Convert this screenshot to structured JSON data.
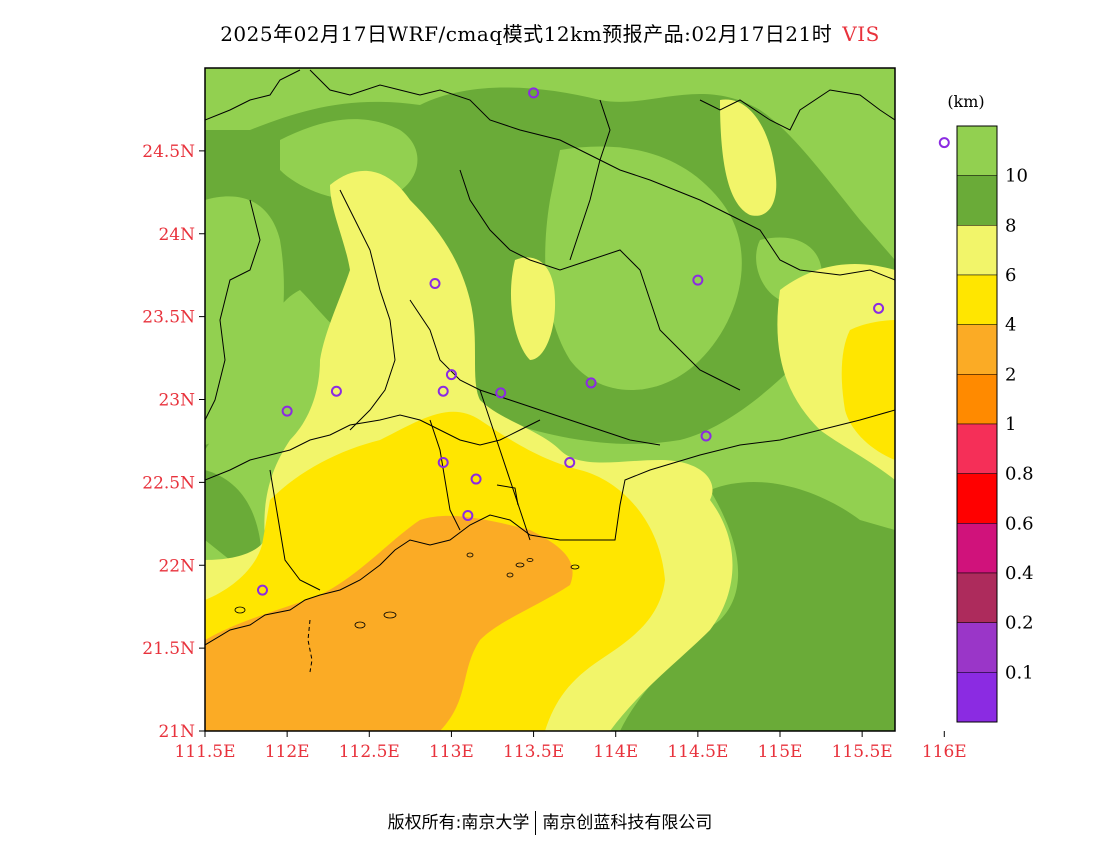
{
  "title": {
    "main": "2025年02月17日WRF/cmaq模式12km预报产品:02月17日21时",
    "variable": "VIS"
  },
  "map": {
    "lat_labels": [
      "24.5N",
      "24N",
      "23.5N",
      "23N",
      "22.5N",
      "22N",
      "21.5N",
      "21N"
    ],
    "lon_labels": [
      "111.5E",
      "112E",
      "112.5E",
      "113E",
      "113.5E",
      "114E",
      "114.5E",
      "115E",
      "115.5E",
      "116E"
    ],
    "lon_range": [
      111.5,
      115.7
    ],
    "lat_range": [
      21.0,
      25.0
    ],
    "stations": [
      {
        "lon": 113.5,
        "lat": 24.85
      },
      {
        "lon": 116.0,
        "lat": 24.55
      },
      {
        "lon": 112.9,
        "lat": 23.7
      },
      {
        "lon": 114.5,
        "lat": 23.72
      },
      {
        "lon": 115.6,
        "lat": 23.55
      },
      {
        "lon": 112.3,
        "lat": 23.05
      },
      {
        "lon": 112.0,
        "lat": 22.93
      },
      {
        "lon": 113.0,
        "lat": 23.15
      },
      {
        "lon": 112.95,
        "lat": 23.05
      },
      {
        "lon": 113.3,
        "lat": 23.04
      },
      {
        "lon": 113.85,
        "lat": 23.1
      },
      {
        "lon": 114.55,
        "lat": 22.78
      },
      {
        "lon": 112.95,
        "lat": 22.62
      },
      {
        "lon": 113.15,
        "lat": 22.52
      },
      {
        "lon": 113.72,
        "lat": 22.62
      },
      {
        "lon": 113.1,
        "lat": 22.3
      },
      {
        "lon": 111.85,
        "lat": 21.85
      }
    ]
  },
  "legend": {
    "unit": "(km)",
    "levels": [
      "10",
      "8",
      "6",
      "4",
      "2",
      "1",
      "0.8",
      "0.6",
      "0.4",
      "0.2",
      "0.1"
    ],
    "colors": [
      "#92d050",
      "#6aab38",
      "#f2f56a",
      "#ffe600",
      "#fbab25",
      "#ff8a00",
      "#f52f58",
      "#ff0000",
      "#d0127b",
      "#ad2b5c",
      "#9a36c8",
      "#8b2be2"
    ]
  },
  "footer": {
    "left": "版权所有:南京大学",
    "right": "南京创蓝科技有限公司"
  }
}
